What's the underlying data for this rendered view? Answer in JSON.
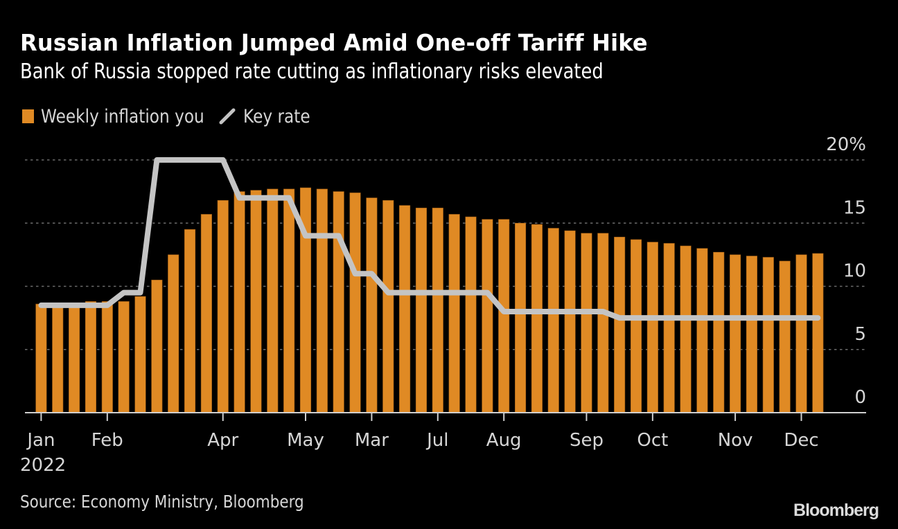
{
  "header": {
    "title": "Russian Inflation Jumped Amid One-off Tariff Hike",
    "subtitle": "Bank of Russia stopped rate cutting as inflationary risks elevated"
  },
  "legend": {
    "items": [
      {
        "label": "Weekly inflation you",
        "icon": "square-swatch-icon",
        "color": "#E08A24"
      },
      {
        "label": "Key rate",
        "icon": "line-swatch-icon",
        "color": "#C4C4C4"
      }
    ]
  },
  "footer": {
    "source": "Source: Economy Ministry, Bloomberg",
    "brand": "Bloomberg"
  },
  "chart_data": {
    "type": "bar",
    "title": "Russian Inflation Jumped Amid One-off Tariff Hike",
    "subtitle": "Bank of Russia stopped rate cutting as inflationary risks elevated",
    "xlabel": "",
    "ylabel": "",
    "ylim": [
      0,
      20
    ],
    "yticks": [
      0,
      5,
      10,
      15,
      20
    ],
    "ytick_labels": [
      "0",
      "5",
      "10",
      "15",
      "20%"
    ],
    "grid": true,
    "y_axis_side": "right",
    "legend_position": "top-left",
    "x_ticks": [
      {
        "index": 0,
        "label": "Jan"
      },
      {
        "index": 4,
        "label": "Feb"
      },
      {
        "index": 11,
        "label": "Apr"
      },
      {
        "index": 16,
        "label": "May"
      },
      {
        "index": 20,
        "label": "Mar"
      },
      {
        "index": 24,
        "label": "Jul"
      },
      {
        "index": 28,
        "label": "Aug"
      },
      {
        "index": 33,
        "label": "Sep"
      },
      {
        "index": 37,
        "label": "Oct"
      },
      {
        "index": 42,
        "label": "Nov"
      },
      {
        "index": 46,
        "label": "Dec"
      }
    ],
    "x_year_label": "2022",
    "series": [
      {
        "name": "Weekly inflation you",
        "type": "bar",
        "color": "#E08A24",
        "values": [
          8.6,
          8.4,
          8.4,
          8.8,
          8.8,
          8.8,
          9.2,
          10.5,
          12.5,
          14.5,
          15.7,
          16.8,
          17.5,
          17.6,
          17.7,
          17.7,
          17.8,
          17.7,
          17.5,
          17.4,
          17.0,
          16.8,
          16.4,
          16.2,
          16.2,
          15.7,
          15.5,
          15.3,
          15.3,
          15.0,
          14.9,
          14.6,
          14.4,
          14.2,
          14.2,
          13.9,
          13.7,
          13.5,
          13.4,
          13.2,
          13.0,
          12.7,
          12.5,
          12.4,
          12.3,
          12.0,
          12.5,
          12.6
        ]
      },
      {
        "name": "Key rate",
        "type": "line",
        "color": "#C4C4C4",
        "points": [
          [
            0,
            8.5
          ],
          [
            4,
            8.5
          ],
          [
            5,
            9.5
          ],
          [
            6,
            9.5
          ],
          [
            7,
            20
          ],
          [
            11,
            20
          ],
          [
            12,
            17
          ],
          [
            15,
            17
          ],
          [
            16,
            14
          ],
          [
            18,
            14
          ],
          [
            19,
            11
          ],
          [
            20,
            11
          ],
          [
            21,
            9.5
          ],
          [
            27,
            9.5
          ],
          [
            28,
            8
          ],
          [
            34,
            8
          ],
          [
            35,
            7.5
          ],
          [
            47,
            7.5
          ]
        ]
      }
    ]
  }
}
